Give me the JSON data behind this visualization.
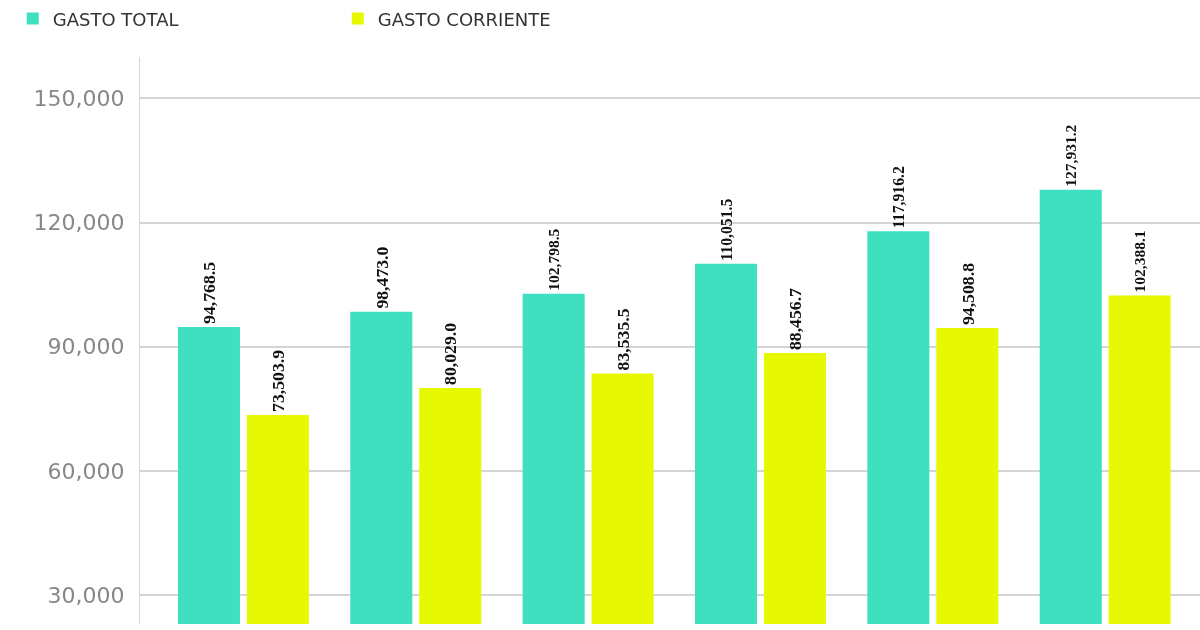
{
  "chart_data": {
    "type": "bar",
    "categories": [
      null,
      null,
      null,
      null,
      null,
      null
    ],
    "series": [
      {
        "name": "GASTO TOTAL",
        "color": "#3ee0c0",
        "values": [
          94768.5,
          98473.0,
          102798.5,
          110051.5,
          117916.2,
          127931.2
        ],
        "value_labels": [
          "94,768.5",
          "98,473.0",
          "102,798.5",
          "110,051.5",
          "117,916.2",
          "127,931.2"
        ]
      },
      {
        "name": "GASTO CORRIENTE",
        "color": "#e6f902",
        "values": [
          73503.9,
          80029.0,
          83535.5,
          88456.7,
          94508.8,
          102388.1
        ],
        "value_labels": [
          "73,503.9",
          "80,029.0",
          "83,535.5",
          "88,456.7",
          "94,508.8",
          "102,388.1"
        ]
      }
    ],
    "ylim": [
      23000,
      160000
    ],
    "yticks": [
      {
        "value": 30000,
        "label": "30,000"
      },
      {
        "value": 60000,
        "label": "60,000"
      },
      {
        "value": 90000,
        "label": "90,000"
      },
      {
        "value": 120000,
        "label": "120,000"
      },
      {
        "value": 150000,
        "label": "150,000"
      }
    ],
    "grid": "y",
    "legend": "top left",
    "tick_labels": "y"
  }
}
